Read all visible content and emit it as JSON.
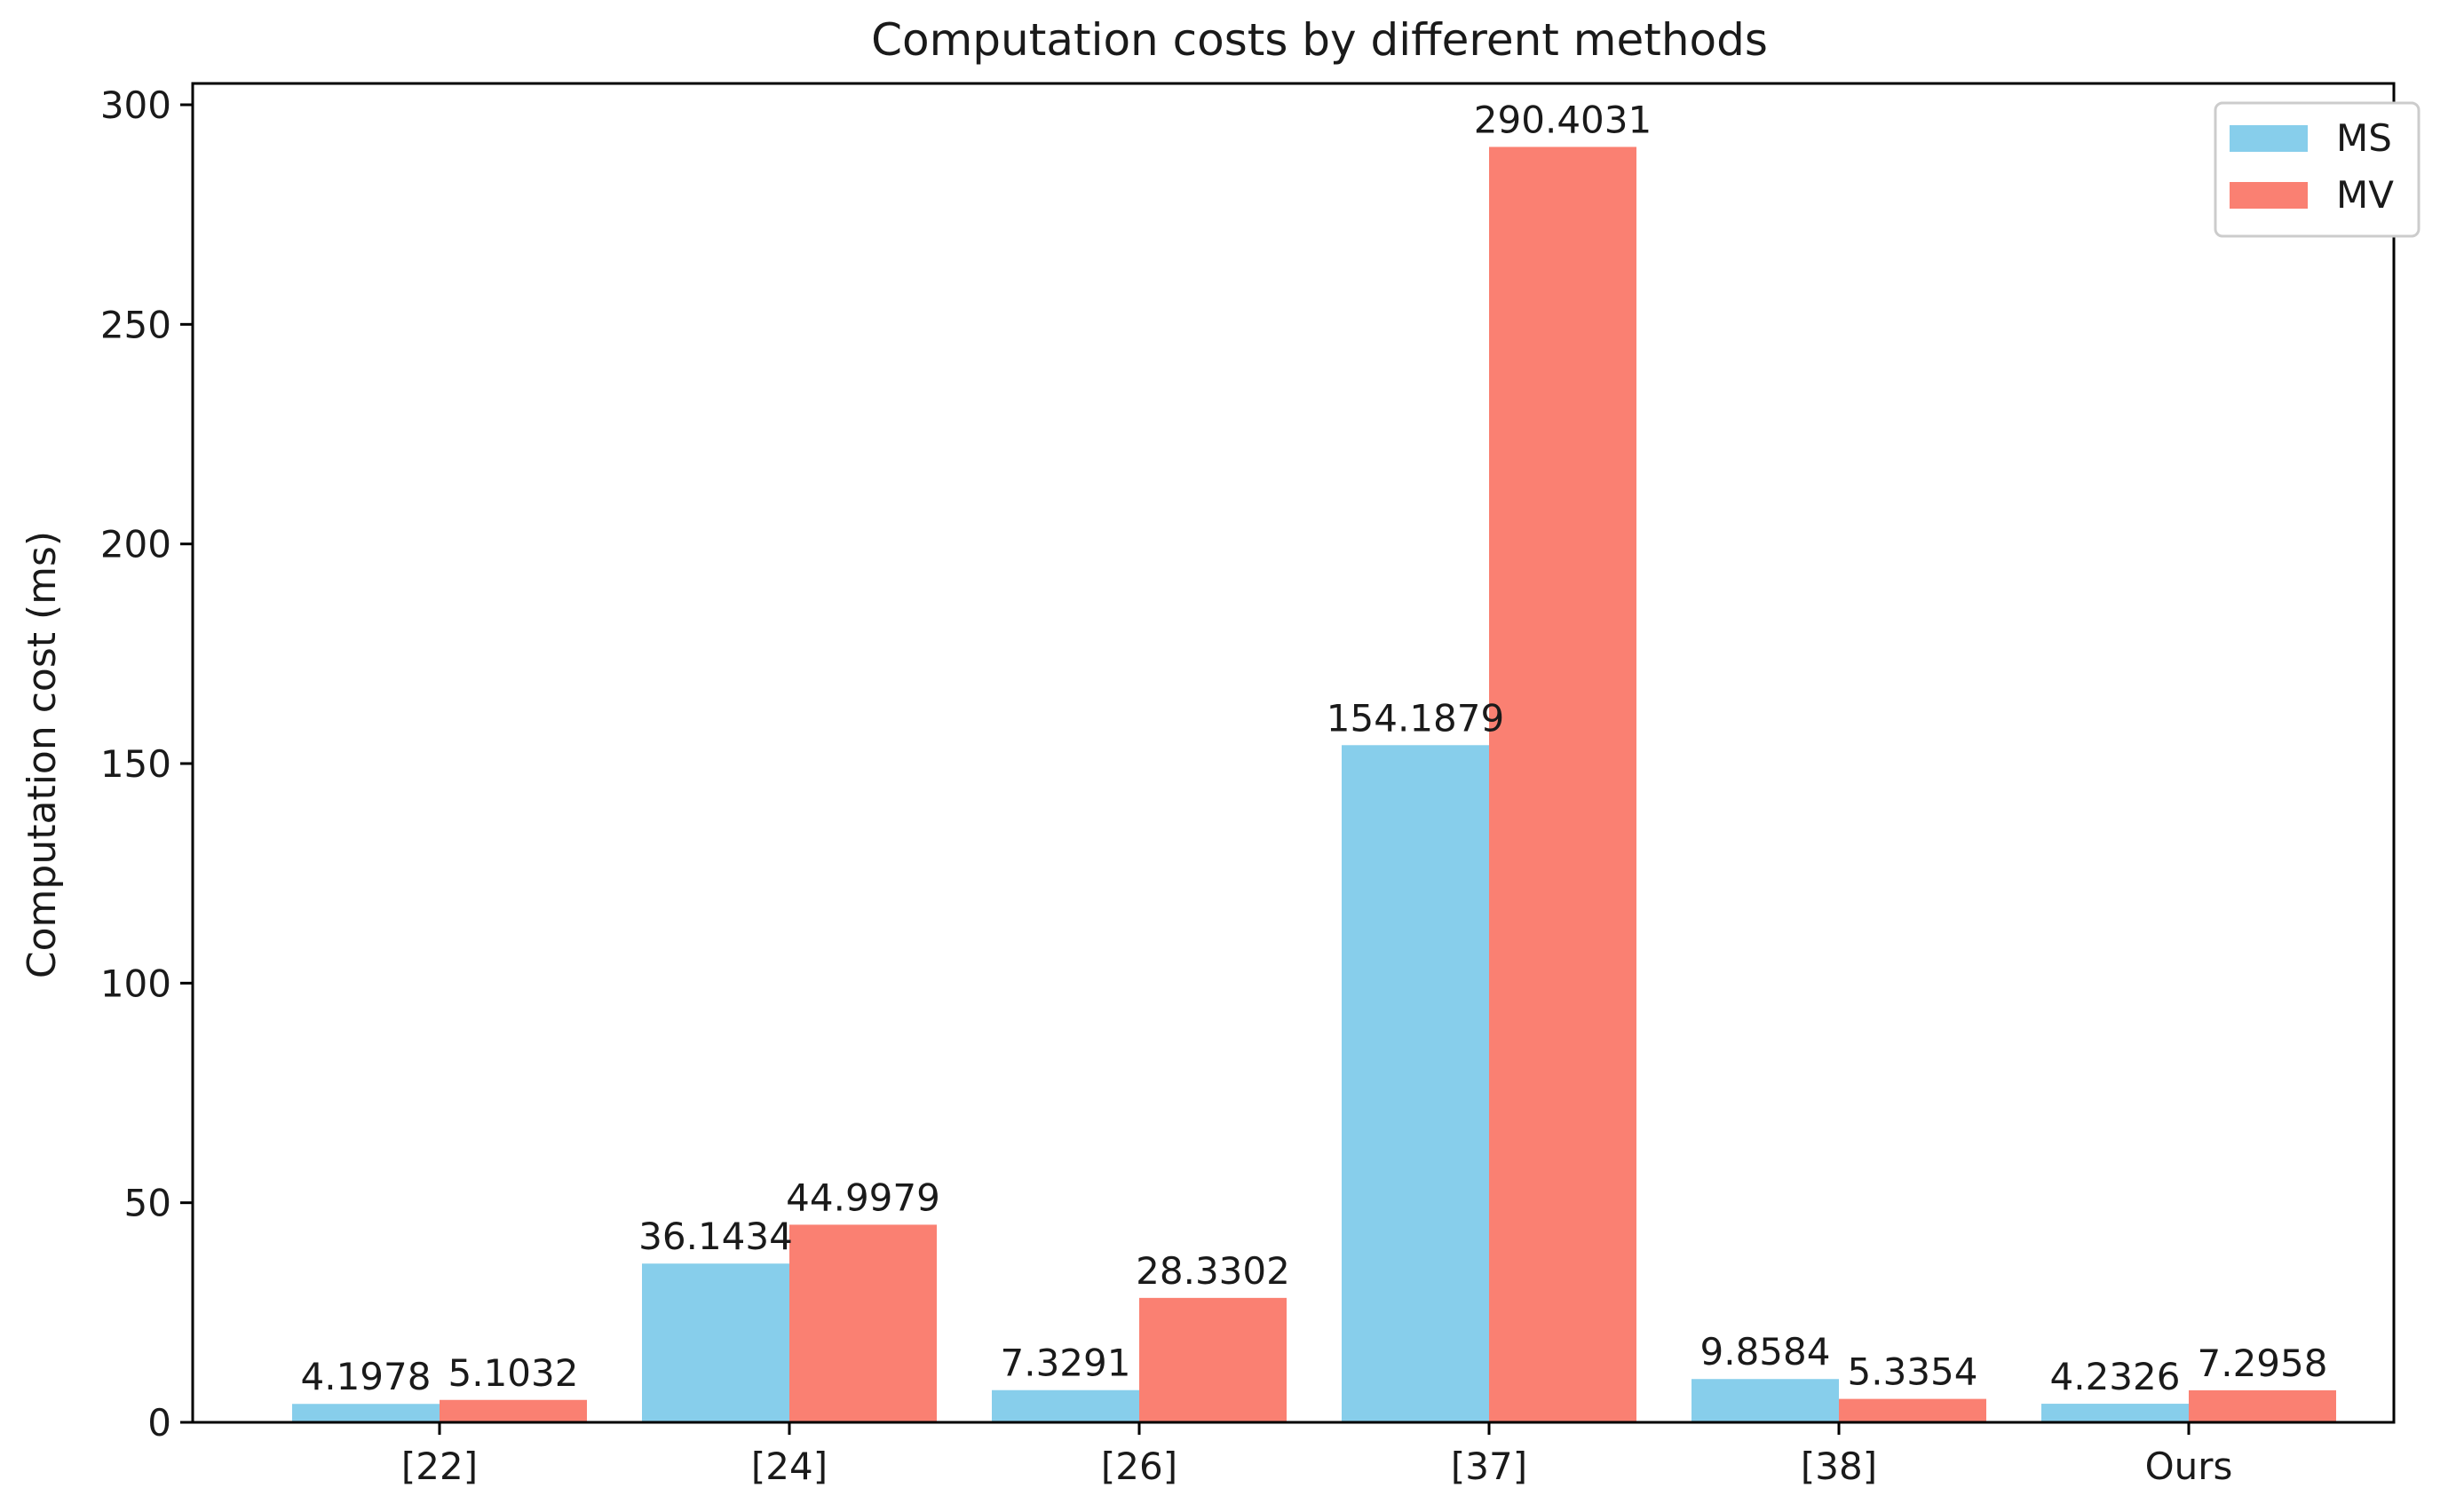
{
  "chart_data": {
    "type": "bar",
    "title": "Computation costs by different methods",
    "xlabel": "",
    "ylabel": "Computation cost (ms)",
    "categories": [
      "[22]",
      "[24]",
      "[26]",
      "[37]",
      "[38]",
      "Ours"
    ],
    "series": [
      {
        "name": "MS",
        "color": "#87ceeb",
        "values": [
          4.1978,
          36.1434,
          7.3291,
          154.1879,
          9.8584,
          4.2326
        ]
      },
      {
        "name": "MV",
        "color": "#fa8072",
        "values": [
          5.1032,
          44.9979,
          28.3302,
          290.4031,
          5.3354,
          7.2958
        ]
      }
    ],
    "value_labels": [
      [
        "4.1978",
        "36.1434",
        "7.3291",
        "154.1879",
        "9.8584",
        "4.2326"
      ],
      [
        "5.1032",
        "44.9979",
        "28.3302",
        "290.4031",
        "5.3354",
        "7.2958"
      ]
    ],
    "ylim": [
      0,
      305
    ],
    "yticks": [
      0,
      50,
      100,
      150,
      200,
      250,
      300
    ],
    "grid": false,
    "legend_position": "top-right"
  }
}
